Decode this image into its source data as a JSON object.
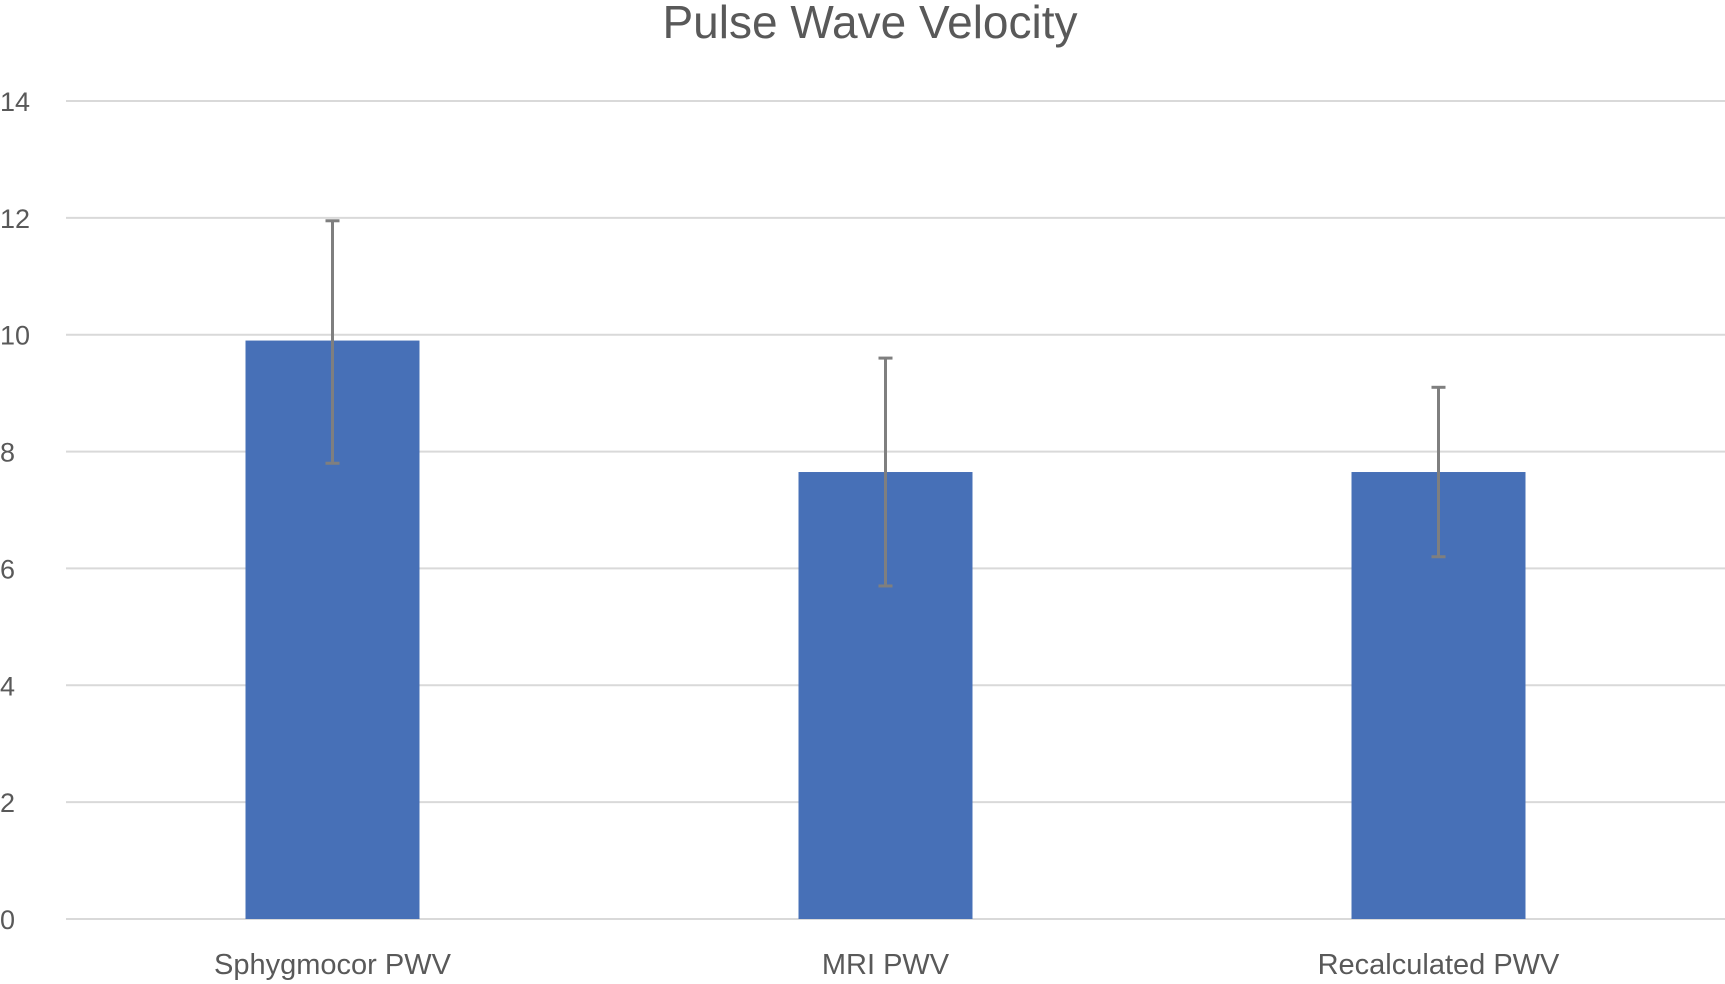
{
  "chart_data": {
    "type": "bar",
    "title": "Pulse Wave Velocity",
    "xlabel": "",
    "ylabel": "",
    "categories": [
      "Sphygmocor PWV",
      "MRI PWV",
      "Recalculated PWV"
    ],
    "values": [
      9.9,
      7.65,
      7.65
    ],
    "error_plus": [
      2.05,
      1.95,
      1.45
    ],
    "error_minus": [
      2.1,
      1.95,
      1.45
    ],
    "ylim": [
      0,
      14
    ],
    "yticks": [
      0,
      2,
      4,
      6,
      8,
      10,
      12,
      14
    ],
    "grid": true,
    "legend": "none",
    "colors": {
      "bar": "#4770b7",
      "error_bar": "#7f7f7f",
      "grid": "#d9d9d9",
      "text": "#595959"
    }
  }
}
